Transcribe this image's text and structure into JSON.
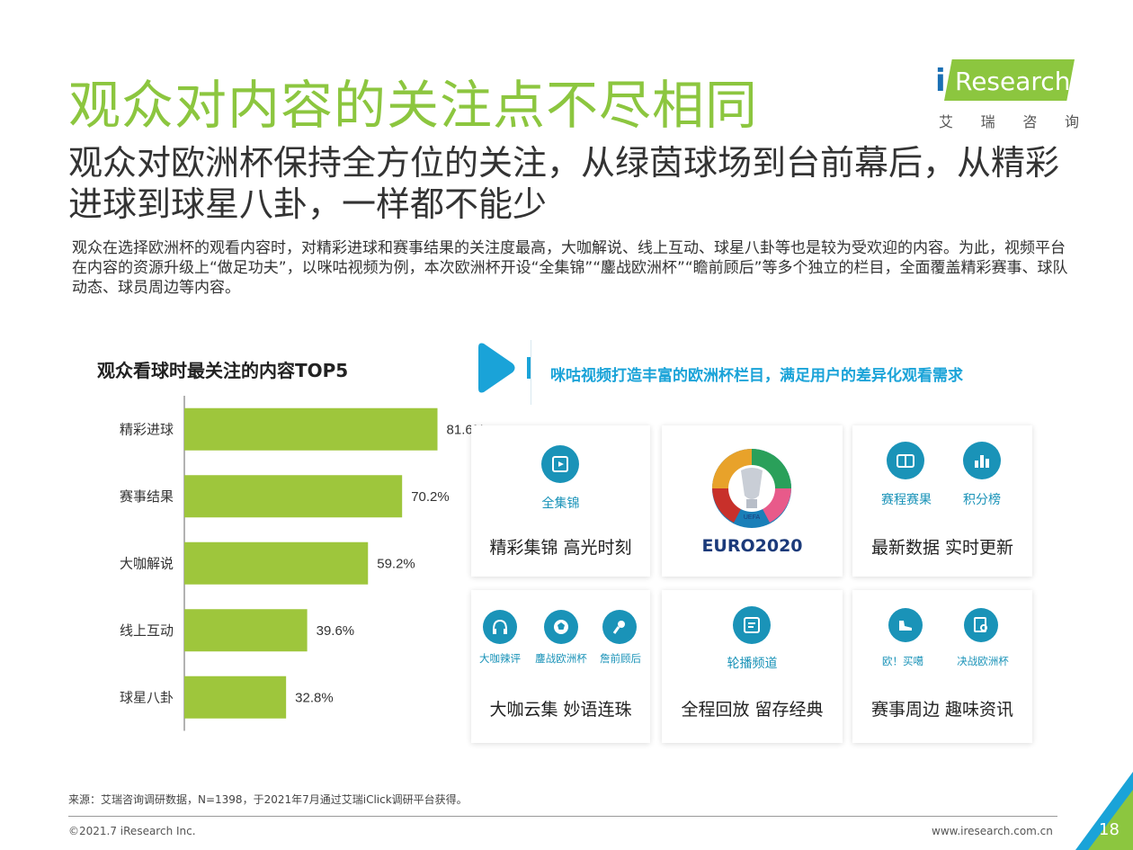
{
  "page": {
    "title": "观众对内容的关注点不尽相同",
    "subtitle": "观众对欧洲杯保持全方位的关注，从绿茵球场到台前幕后，从精彩进球到球星八卦，一样都不能少",
    "description": "观众在选择欧洲杯的观看内容时，对精彩进球和赛事结果的关注度最高，大咖解说、线上互动、球星八卦等也是较为受欢迎的内容。为此，视频平台在内容的资源升级上“做足功夫”，以咪咕视频为例，本次欧洲杯开设“全集锦”“鏖战欧洲杯”“瞻前顾后”等多个独立的栏目，全面覆盖精彩赛事、球队动态、球员周边等内容。"
  },
  "logo": {
    "brand": "Research",
    "cn": [
      "艾",
      "瑞",
      "咨",
      "询"
    ]
  },
  "chart_data": {
    "type": "bar",
    "orientation": "horizontal",
    "title": "观众看球时最关注的内容TOP5",
    "categories": [
      "精彩进球",
      "赛事结果",
      "大咖解说",
      "线上互动",
      "球星八卦"
    ],
    "values": [
      81.6,
      70.2,
      59.2,
      39.6,
      32.8
    ],
    "labels": [
      "81.6%",
      "70.2%",
      "59.2%",
      "39.6%",
      "32.8%"
    ],
    "xlim": [
      0,
      100
    ],
    "unit": "%",
    "color": "#9ec63c"
  },
  "migu": {
    "title": "咪咕视频打造丰富的欧洲杯栏目，满足用户的差异化观看需求",
    "cards": [
      {
        "labels": [
          "全集锦"
        ],
        "caption": "精彩集锦  高光时刻"
      },
      {
        "logo_text": "EURO2020",
        "logo_badge": "UEFA",
        "caption": ""
      },
      {
        "labels": [
          "赛程赛果",
          "积分榜"
        ],
        "caption": "最新数据  实时更新"
      },
      {
        "labels": [
          "大咖辣评",
          "鏖战欧洲杯",
          "詹前顾后"
        ],
        "caption": "大咖云集  妙语连珠"
      },
      {
        "labels": [
          "轮播频道"
        ],
        "caption": "全程回放  留存经典"
      },
      {
        "labels": [
          "欧！买噶",
          "决战欧洲杯"
        ],
        "caption": "赛事周边  趣味资讯"
      }
    ]
  },
  "footer": {
    "source": "来源：艾瑞咨询调研数据，N=1398，于2021年7月通过艾瑞iClick调研平台获得。",
    "copyright": "©2021.7 iResearch Inc.",
    "url": "www.iresearch.com.cn",
    "page_number": "18"
  },
  "colors": {
    "green": "#8cc63f",
    "teal": "#1a93b8",
    "blue": "#1aa3d8"
  }
}
